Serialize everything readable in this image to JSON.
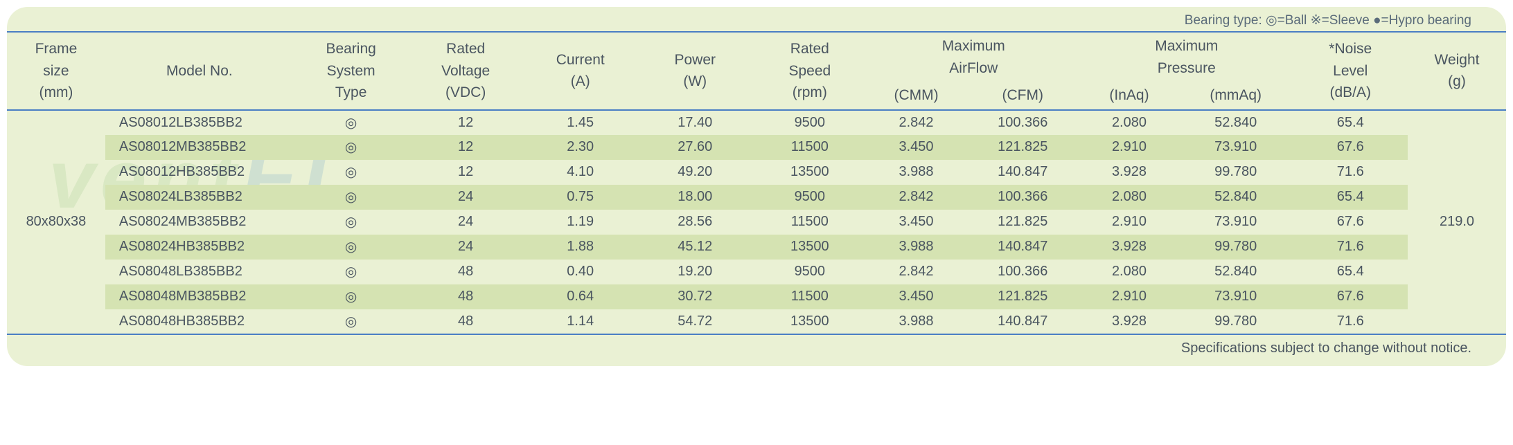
{
  "legend": {
    "label": "Bearing type:",
    "ball": "◎=Ball",
    "sleeve": "※=Sleeve",
    "hypro": "●=Hypro bearing"
  },
  "headers": {
    "frame": "Frame\nsize\n(mm)",
    "model": "Model No.",
    "bearing": "Bearing\nSystem\nType",
    "voltage": "Rated\nVoltage\n(VDC)",
    "current": "Current\n(A)",
    "power": "Power\n(W)",
    "speed": "Rated\nSpeed\n(rpm)",
    "airflow_top": "Maximum\nAirFlow",
    "cmm": "(CMM)",
    "cfm": "(CFM)",
    "pressure_top": "Maximum\nPressure",
    "inaq": "(InAq)",
    "mmaq": "(mmAq)",
    "noise": "*Noise\nLevel\n(dB/A)",
    "weight": "Weight\n(g)"
  },
  "frame_size": "80x80x38",
  "weight": "219.0",
  "bearing_symbol": "◎",
  "rows": [
    {
      "model": "AS08012LB385BB2",
      "voltage": "12",
      "current": "1.45",
      "power": "17.40",
      "speed": "9500",
      "cmm": "2.842",
      "cfm": "100.366",
      "inaq": "2.080",
      "mmaq": "52.840",
      "noise": "65.4"
    },
    {
      "model": "AS08012MB385BB2",
      "voltage": "12",
      "current": "2.30",
      "power": "27.60",
      "speed": "11500",
      "cmm": "3.450",
      "cfm": "121.825",
      "inaq": "2.910",
      "mmaq": "73.910",
      "noise": "67.6"
    },
    {
      "model": "AS08012HB385BB2",
      "voltage": "12",
      "current": "4.10",
      "power": "49.20",
      "speed": "13500",
      "cmm": "3.988",
      "cfm": "140.847",
      "inaq": "3.928",
      "mmaq": "99.780",
      "noise": "71.6"
    },
    {
      "model": "AS08024LB385BB2",
      "voltage": "24",
      "current": "0.75",
      "power": "18.00",
      "speed": "9500",
      "cmm": "2.842",
      "cfm": "100.366",
      "inaq": "2.080",
      "mmaq": "52.840",
      "noise": "65.4"
    },
    {
      "model": "AS08024MB385BB2",
      "voltage": "24",
      "current": "1.19",
      "power": "28.56",
      "speed": "11500",
      "cmm": "3.450",
      "cfm": "121.825",
      "inaq": "2.910",
      "mmaq": "73.910",
      "noise": "67.6"
    },
    {
      "model": "AS08024HB385BB2",
      "voltage": "24",
      "current": "1.88",
      "power": "45.12",
      "speed": "13500",
      "cmm": "3.988",
      "cfm": "140.847",
      "inaq": "3.928",
      "mmaq": "99.780",
      "noise": "71.6"
    },
    {
      "model": "AS08048LB385BB2",
      "voltage": "48",
      "current": "0.40",
      "power": "19.20",
      "speed": "9500",
      "cmm": "2.842",
      "cfm": "100.366",
      "inaq": "2.080",
      "mmaq": "52.840",
      "noise": "65.4"
    },
    {
      "model": "AS08048MB385BB2",
      "voltage": "48",
      "current": "0.64",
      "power": "30.72",
      "speed": "11500",
      "cmm": "3.450",
      "cfm": "121.825",
      "inaq": "2.910",
      "mmaq": "73.910",
      "noise": "67.6"
    },
    {
      "model": "AS08048HB385BB2",
      "voltage": "48",
      "current": "1.14",
      "power": "54.72",
      "speed": "13500",
      "cmm": "3.988",
      "cfm": "140.847",
      "inaq": "3.928",
      "mmaq": "99.780",
      "noise": "71.6"
    }
  ],
  "footer": "Specifications subject to change without notice.",
  "watermark": {
    "text1": "vent",
    "text2": "EL"
  },
  "colors": {
    "container_bg": "#eaf1d4",
    "stripe_bg": "#d5e3b2",
    "border": "#4a7ec4",
    "text": "#4a5560",
    "legend_text": "#5a6b7a"
  }
}
